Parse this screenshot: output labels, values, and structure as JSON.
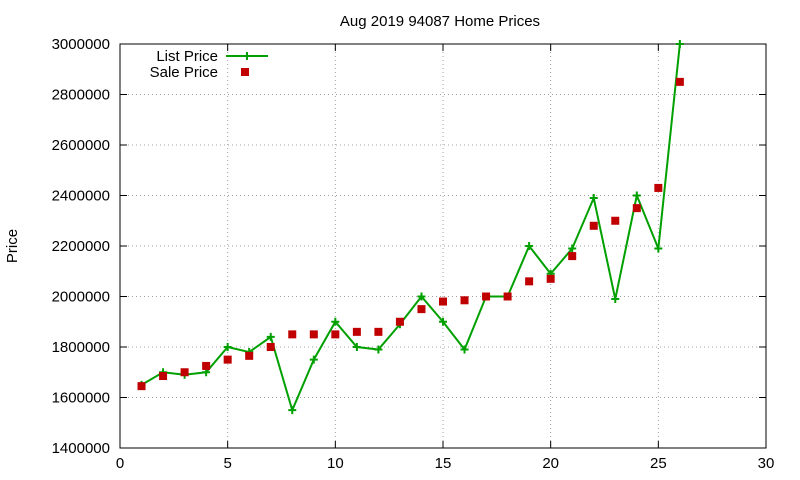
{
  "chart_data": {
    "type": "line",
    "title": "Aug 2019 94087 Home Prices",
    "xlabel": "",
    "ylabel": "Price",
    "xlim": [
      0,
      30
    ],
    "ylim": [
      1400000,
      3000000
    ],
    "x_ticks": [
      "0",
      "5",
      "10",
      "15",
      "20",
      "25",
      "30"
    ],
    "y_ticks": [
      "1400000",
      "1600000",
      "1800000",
      "2000000",
      "2200000",
      "2400000",
      "2600000",
      "2800000",
      "3000000"
    ],
    "grid": true,
    "legend_position": "top-left",
    "series": [
      {
        "name": "List Price",
        "style": "line-with-plus-markers",
        "color": "#00a000",
        "x": [
          1,
          2,
          3,
          4,
          5,
          6,
          7,
          8,
          9,
          10,
          11,
          12,
          13,
          14,
          15,
          16,
          17,
          18,
          19,
          20,
          21,
          22,
          23,
          24,
          25,
          26
        ],
        "values": [
          1650000,
          1700000,
          1690000,
          1700000,
          1800000,
          1780000,
          1840000,
          1550000,
          1750000,
          1900000,
          1800000,
          1790000,
          1890000,
          2000000,
          1900000,
          1790000,
          2000000,
          2000000,
          2200000,
          2090000,
          2190000,
          2390000,
          1990000,
          2400000,
          2190000,
          3000000
        ]
      },
      {
        "name": "Sale Price",
        "style": "square-markers",
        "color": "#c00000",
        "x": [
          1,
          2,
          3,
          4,
          5,
          6,
          7,
          8,
          9,
          10,
          11,
          12,
          13,
          14,
          15,
          16,
          17,
          18,
          19,
          20,
          21,
          22,
          23,
          24,
          25,
          26
        ],
        "values": [
          1645000,
          1685000,
          1700000,
          1725000,
          1750000,
          1765000,
          1800000,
          1850000,
          1850000,
          1850000,
          1860000,
          1860000,
          1900000,
          1950000,
          1980000,
          1985000,
          2000000,
          2000000,
          2060000,
          2070000,
          2160000,
          2280000,
          2300000,
          2350000,
          2430000,
          2850000
        ]
      }
    ]
  }
}
